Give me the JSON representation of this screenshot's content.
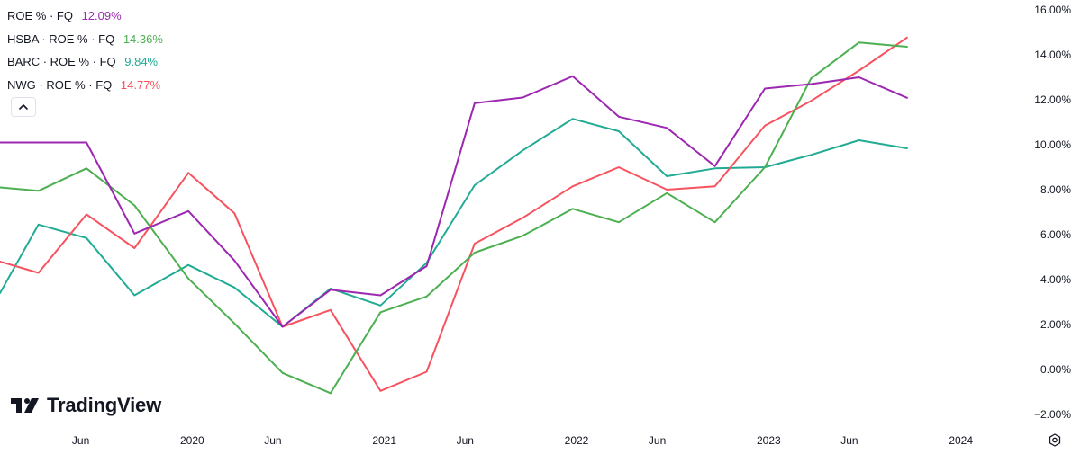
{
  "legend": [
    {
      "label": "ROE % · FQ",
      "value": "12.09%",
      "color": "#9c27b0"
    },
    {
      "label": "HSBA · ROE % · FQ",
      "value": "14.36%",
      "color": "#4caf50"
    },
    {
      "label": "BARC · ROE % · FQ",
      "value": "9.84%",
      "color": "#22ab94"
    },
    {
      "label": "NWG · ROE % · FQ",
      "value": "14.77%",
      "color": "#f7525f"
    }
  ],
  "brand": {
    "name": "TradingView"
  },
  "chart_data": {
    "type": "line",
    "x_ticks": [
      {
        "label": "Jun",
        "t": 2019.42
      },
      {
        "label": "2020",
        "t": 2020.0
      },
      {
        "label": "Jun",
        "t": 2020.42
      },
      {
        "label": "2021",
        "t": 2021.0
      },
      {
        "label": "Jun",
        "t": 2021.42
      },
      {
        "label": "2022",
        "t": 2022.0
      },
      {
        "label": "Jun",
        "t": 2022.42
      },
      {
        "label": "2023",
        "t": 2023.0
      },
      {
        "label": "Jun",
        "t": 2023.42
      },
      {
        "label": "2024",
        "t": 2024.0
      }
    ],
    "y_ticks": [
      "16.00%",
      "14.00%",
      "12.00%",
      "10.00%",
      "8.00%",
      "6.00%",
      "4.00%",
      "2.00%",
      "0.00%",
      "−2.00%"
    ],
    "y_tick_values": [
      16,
      14,
      12,
      10,
      8,
      6,
      4,
      2,
      0,
      -2
    ],
    "ylim": [
      -2,
      16
    ],
    "xlim": [
      2019.0,
      2024.25
    ],
    "series": [
      {
        "name": "ROE % · FQ",
        "color": "#9c27b0",
        "x": [
          2019.0,
          2019.45,
          2019.7,
          2019.98,
          2020.22,
          2020.47,
          2020.72,
          2020.98,
          2021.22,
          2021.47,
          2021.72,
          2021.98,
          2022.22,
          2022.47,
          2022.72,
          2022.98,
          2023.22,
          2023.47,
          2023.72
        ],
        "y": [
          10.1,
          10.1,
          6.05,
          7.05,
          4.85,
          1.9,
          3.55,
          3.3,
          4.6,
          11.85,
          12.1,
          13.05,
          11.25,
          10.75,
          9.05,
          12.5,
          12.7,
          13.0,
          12.09
        ]
      },
      {
        "name": "HSBA · ROE % · FQ",
        "color": "#4caf50",
        "x": [
          2019.0,
          2019.2,
          2019.45,
          2019.7,
          2019.98,
          2020.22,
          2020.47,
          2020.72,
          2020.98,
          2021.22,
          2021.47,
          2021.72,
          2021.98,
          2022.22,
          2022.47,
          2022.72,
          2022.98,
          2023.22,
          2023.47,
          2023.72
        ],
        "y": [
          8.1,
          7.95,
          8.95,
          7.3,
          4.05,
          2.05,
          -0.15,
          -1.05,
          2.55,
          3.25,
          5.2,
          5.95,
          7.15,
          6.55,
          7.85,
          6.55,
          9.0,
          12.95,
          14.55,
          14.36
        ]
      },
      {
        "name": "BARC · ROE % · FQ",
        "color": "#22ab94",
        "x": [
          2019.0,
          2019.2,
          2019.45,
          2019.7,
          2019.98,
          2020.22,
          2020.47,
          2020.72,
          2020.98,
          2021.22,
          2021.47,
          2021.72,
          2021.98,
          2022.22,
          2022.47,
          2022.72,
          2022.98,
          2023.22,
          2023.47,
          2023.72
        ],
        "y": [
          3.4,
          6.45,
          5.85,
          3.3,
          4.65,
          3.65,
          1.9,
          3.6,
          2.85,
          4.75,
          8.2,
          9.75,
          11.15,
          10.6,
          8.6,
          8.95,
          9.0,
          9.55,
          10.2,
          9.84
        ]
      },
      {
        "name": "NWG · ROE % · FQ",
        "color": "#f7525f",
        "x": [
          2019.0,
          2019.2,
          2019.45,
          2019.7,
          2019.98,
          2020.22,
          2020.47,
          2020.72,
          2020.98,
          2021.22,
          2021.47,
          2021.72,
          2021.98,
          2022.22,
          2022.47,
          2022.72,
          2022.98,
          2023.22,
          2023.47,
          2023.72
        ],
        "y": [
          4.8,
          4.3,
          6.9,
          5.4,
          8.75,
          6.95,
          1.9,
          2.65,
          -0.95,
          -0.1,
          5.6,
          6.75,
          8.15,
          9.0,
          8.0,
          8.15,
          10.85,
          11.95,
          13.3,
          14.77
        ]
      }
    ]
  }
}
